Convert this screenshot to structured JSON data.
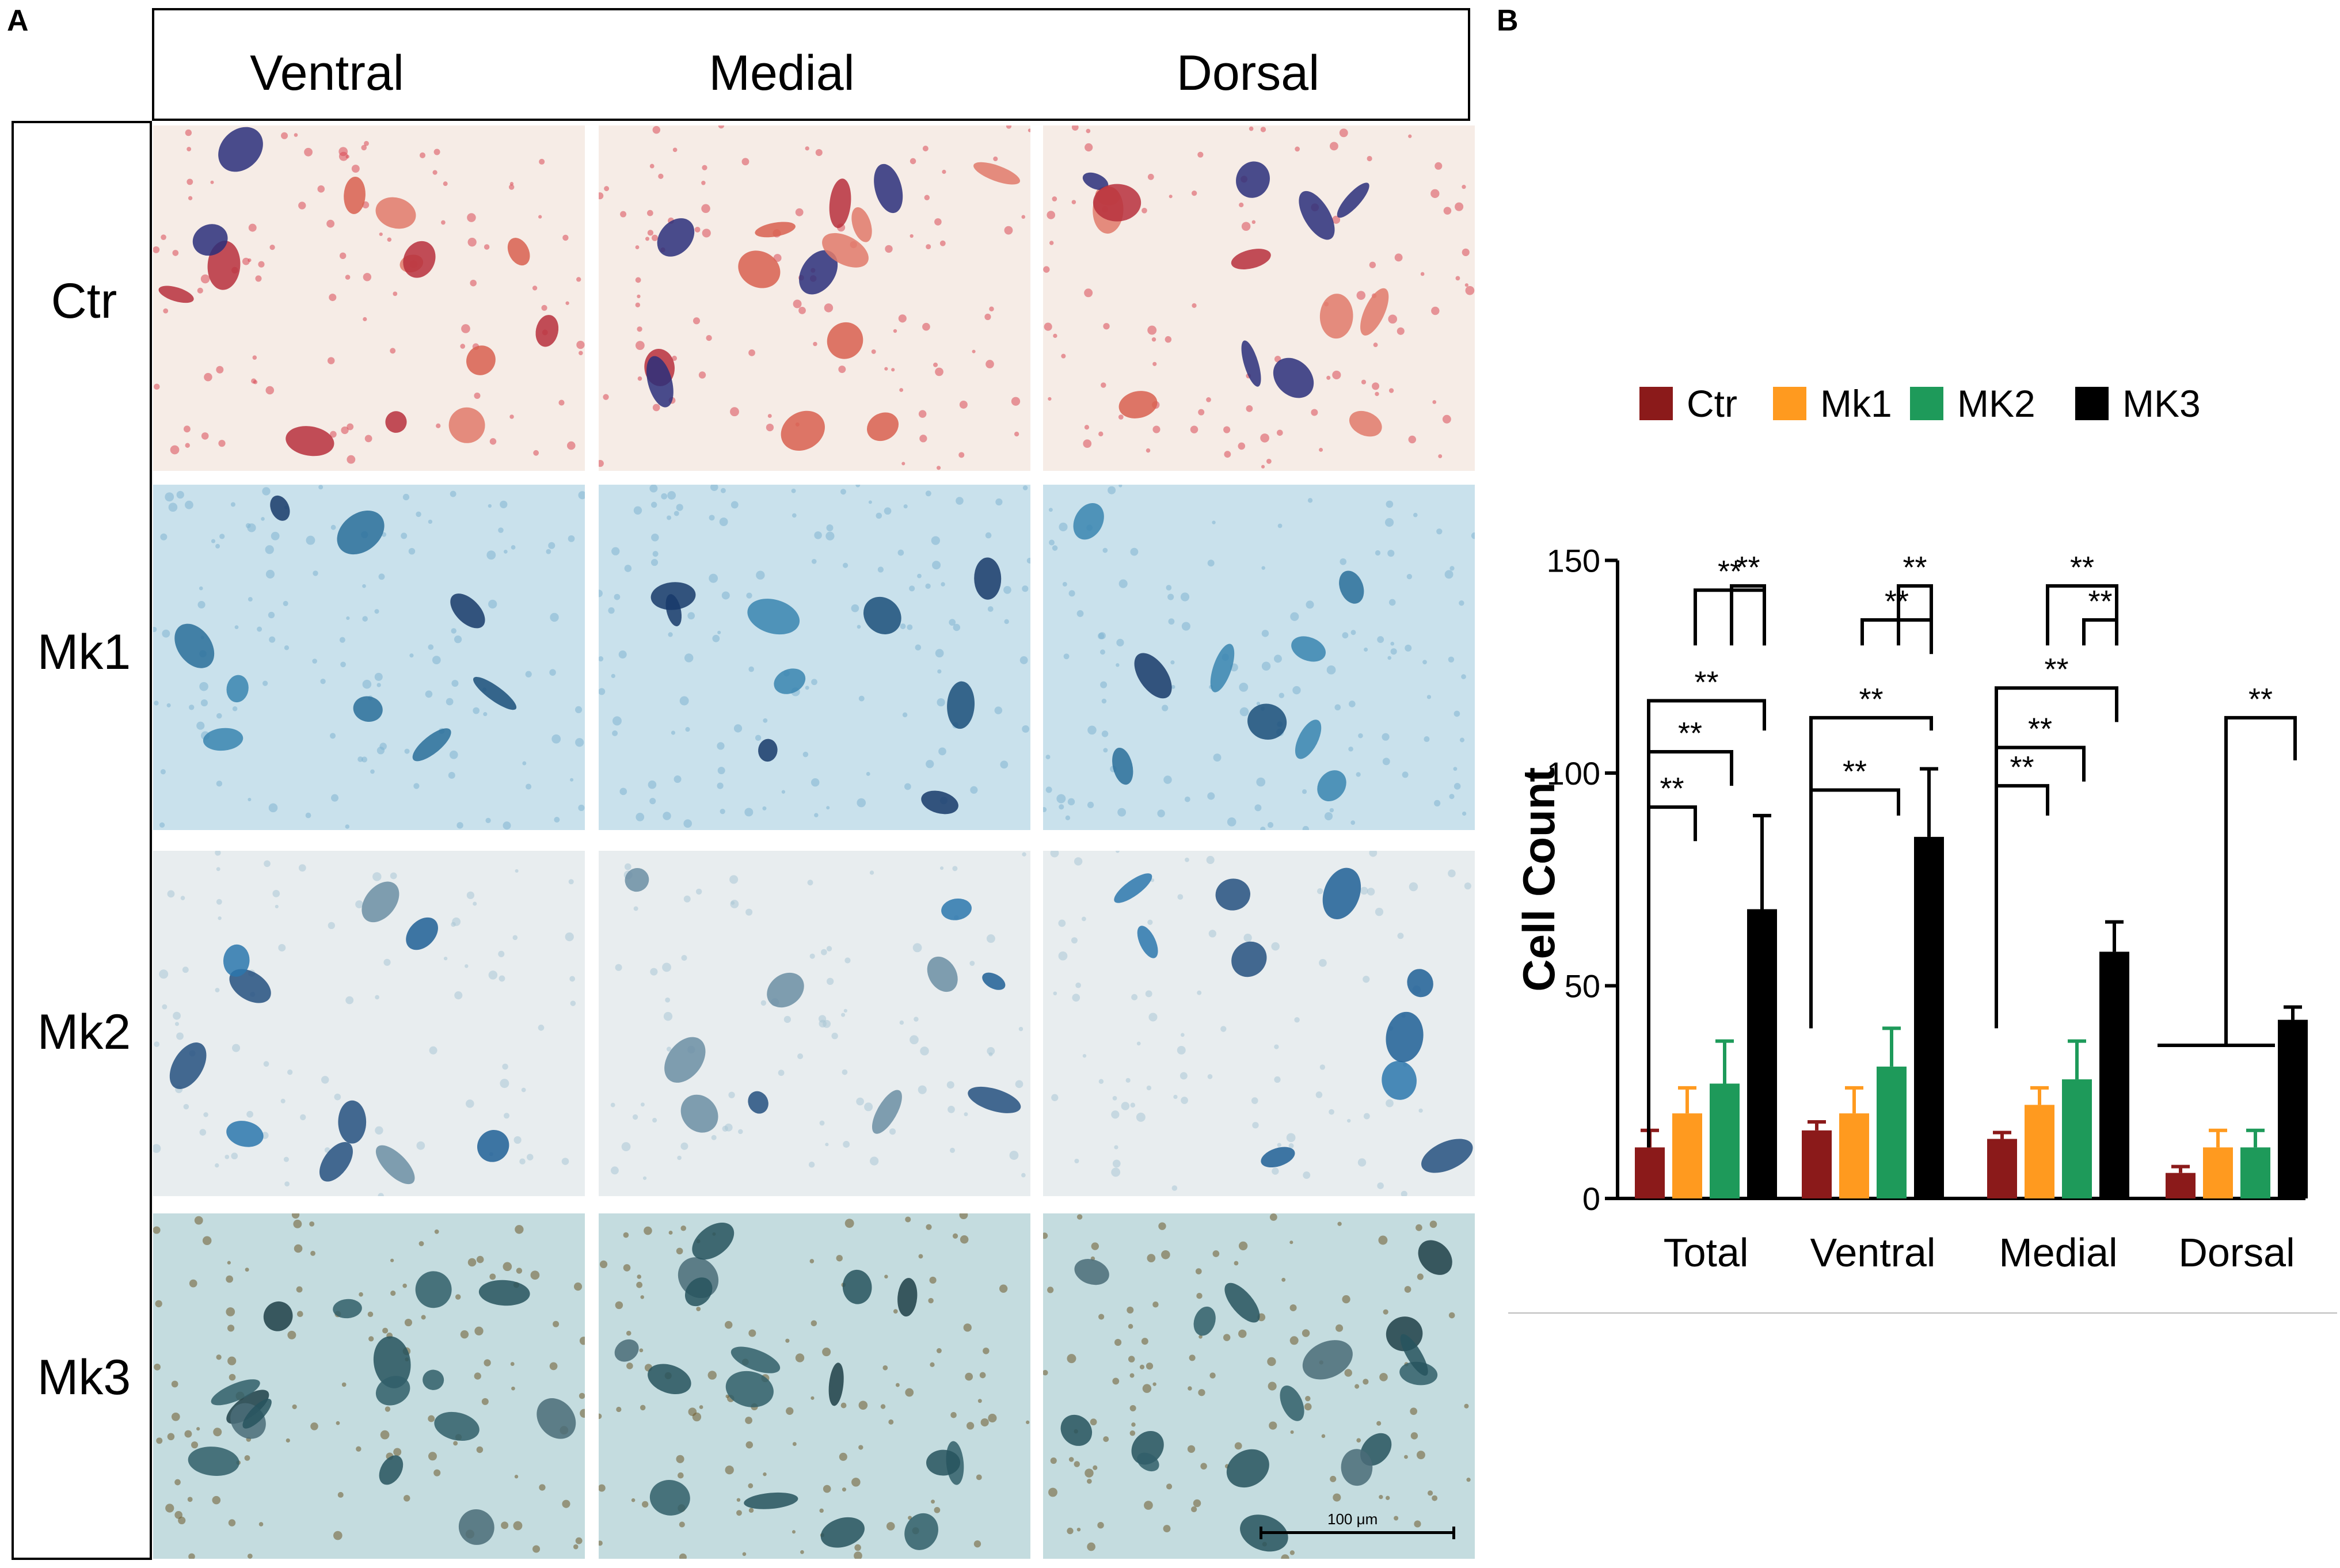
{
  "figure": {
    "panel_a_label": "A",
    "panel_b_label": "B",
    "columns": [
      "Ventral",
      "Medial",
      "Dorsal"
    ],
    "rows": [
      "Ctr",
      "Mk1",
      "Mk2",
      "Mk3"
    ],
    "scale_bar_label": "100 μm"
  },
  "chart_data": {
    "type": "bar",
    "ylabel": "Cell Count",
    "xlabel": "",
    "ylim": [
      0,
      150
    ],
    "yticks": [
      0,
      50,
      100,
      150
    ],
    "categories": [
      "Total",
      "Ventral",
      "Medial",
      "Dorsal"
    ],
    "legend_position": "top",
    "series": [
      {
        "name": "Ctr",
        "color": "#8b1a1a",
        "values": [
          12,
          16,
          14,
          6
        ],
        "errors": [
          4,
          2,
          1.5,
          1.5
        ]
      },
      {
        "name": "Mk1",
        "color": "#ff9a1f",
        "values": [
          20,
          20,
          22,
          12
        ],
        "errors": [
          6,
          6,
          4,
          4
        ]
      },
      {
        "name": "MK2",
        "color": "#1e9a5a",
        "values": [
          27,
          31,
          28,
          12
        ],
        "errors": [
          10,
          9,
          9,
          4
        ]
      },
      {
        "name": "MK3",
        "color": "#000000",
        "values": [
          68,
          85,
          58,
          42
        ],
        "errors": [
          22,
          16,
          7,
          3
        ]
      }
    ],
    "significance_label": "**"
  }
}
